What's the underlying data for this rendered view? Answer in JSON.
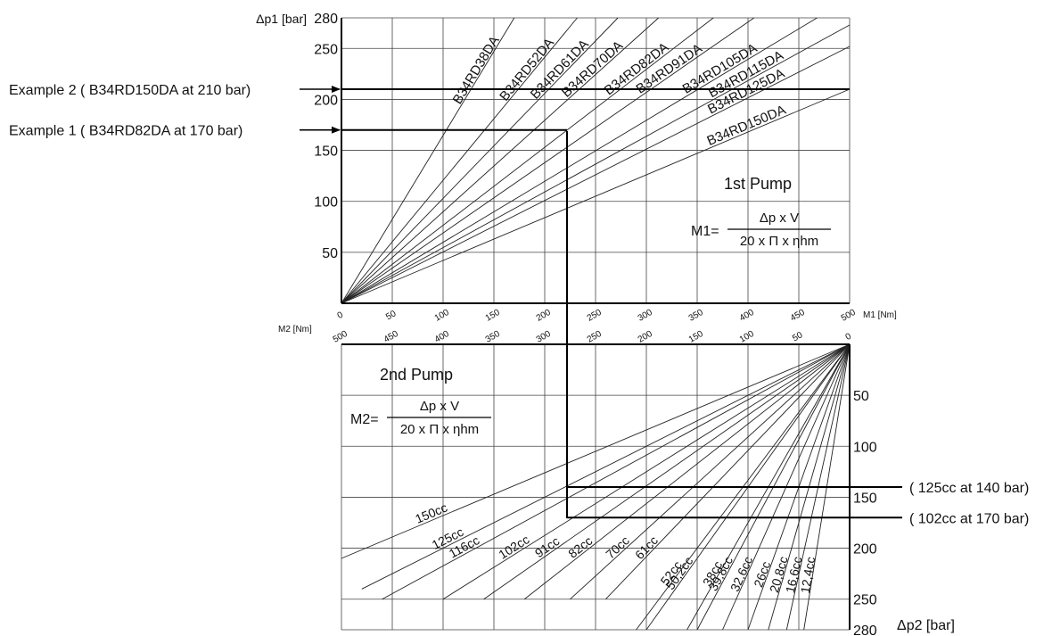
{
  "chart_data": [
    {
      "type": "line",
      "panel": "1st Pump",
      "title": "1st Pump",
      "formula": {
        "lhs": "M1=",
        "numerator": "Δp x V",
        "denominator": "20 x Π x ηhm"
      },
      "xlabel": "M1 [Nm]",
      "ylabel": "Δp1 [bar]",
      "xlim": [
        0,
        500
      ],
      "ylim": [
        0,
        280
      ],
      "xticks": [
        0,
        50,
        100,
        150,
        200,
        250,
        300,
        350,
        400,
        450,
        500
      ],
      "yticks": [
        50,
        100,
        150,
        200,
        250,
        280
      ],
      "grid": true,
      "series": [
        {
          "name": "B34RD38DA",
          "x": [
            0,
            170
          ],
          "y": [
            0,
            280
          ]
        },
        {
          "name": "B34RD52DA",
          "x": [
            0,
            232
          ],
          "y": [
            0,
            280
          ]
        },
        {
          "name": "B34RD61DA",
          "x": [
            0,
            272
          ],
          "y": [
            0,
            280
          ]
        },
        {
          "name": "B34RD70DA",
          "x": [
            0,
            312
          ],
          "y": [
            0,
            280
          ]
        },
        {
          "name": "B34RD82DA",
          "x": [
            0,
            366
          ],
          "y": [
            0,
            280
          ]
        },
        {
          "name": "B34RD91DA",
          "x": [
            0,
            406
          ],
          "y": [
            0,
            280
          ]
        },
        {
          "name": "B34RD105DA",
          "x": [
            0,
            468
          ],
          "y": [
            0,
            280
          ]
        },
        {
          "name": "B34RD115DA",
          "x": [
            0,
            500
          ],
          "y": [
            0,
            273
          ]
        },
        {
          "name": "B34RD125DA",
          "x": [
            0,
            500
          ],
          "y": [
            0,
            252
          ]
        },
        {
          "name": "B34RD150DA",
          "x": [
            0,
            500
          ],
          "y": [
            0,
            210
          ]
        }
      ],
      "annotations": [
        {
          "text": "Example 2 ( B34RD150DA at 210 bar)",
          "y": 210,
          "x_end": 500
        },
        {
          "text": "Example 1 ( B34RD82DA at 170 bar)",
          "y": 170,
          "x_end": 222
        }
      ]
    },
    {
      "type": "line",
      "panel": "2nd Pump",
      "title": "2nd Pump",
      "formula": {
        "lhs": "M2=",
        "numerator": "Δp x V",
        "denominator": "20 x Π x ηhm"
      },
      "xlabel": "M2 [Nm]",
      "ylabel": "Δp2 [bar]",
      "xlim": [
        500,
        0
      ],
      "ylim": [
        0,
        280
      ],
      "xticks": [
        500,
        450,
        400,
        350,
        300,
        250,
        200,
        150,
        100,
        50,
        0
      ],
      "yticks": [
        50,
        100,
        150,
        200,
        250,
        280
      ],
      "grid": true,
      "series": [
        {
          "name": "150cc",
          "x": [
            0,
            500
          ],
          "y": [
            0,
            210
          ]
        },
        {
          "name": "125cc",
          "x": [
            0,
            480
          ],
          "y": [
            0,
            240
          ]
        },
        {
          "name": "116cc",
          "x": [
            0,
            460
          ],
          "y": [
            0,
            250
          ]
        },
        {
          "name": "102cc",
          "x": [
            0,
            400
          ],
          "y": [
            0,
            250
          ]
        },
        {
          "name": "91cc",
          "x": [
            0,
            360
          ],
          "y": [
            0,
            250
          ]
        },
        {
          "name": "82cc",
          "x": [
            0,
            320
          ],
          "y": [
            0,
            250
          ]
        },
        {
          "name": "70cc",
          "x": [
            0,
            275
          ],
          "y": [
            0,
            250
          ]
        },
        {
          "name": "61cc",
          "x": [
            0,
            240
          ],
          "y": [
            0,
            250
          ]
        },
        {
          "name": "52cc",
          "x": [
            0,
            210
          ],
          "y": [
            0,
            280
          ]
        },
        {
          "name": "38cc",
          "x": [
            0,
            160
          ],
          "y": [
            0,
            280
          ]
        },
        {
          "name": "50,2cc",
          "x": [
            0,
            200
          ],
          "y": [
            0,
            280
          ]
        },
        {
          "name": "39,8cc",
          "x": [
            0,
            150
          ],
          "y": [
            0,
            280
          ]
        },
        {
          "name": "32,6cc",
          "x": [
            0,
            125
          ],
          "y": [
            0,
            280
          ]
        },
        {
          "name": "26cc",
          "x": [
            0,
            100
          ],
          "y": [
            0,
            280
          ]
        },
        {
          "name": "20,8cc",
          "x": [
            0,
            80
          ],
          "y": [
            0,
            280
          ]
        },
        {
          "name": "16,6cc",
          "x": [
            0,
            62
          ],
          "y": [
            0,
            280
          ]
        },
        {
          "name": "12,4cc",
          "x": [
            0,
            45
          ],
          "y": [
            0,
            280
          ]
        }
      ],
      "annotations": [
        {
          "text": "( 125cc at 140 bar)",
          "y": 140,
          "x_start": 278
        },
        {
          "text": "( 102cc at 170 bar)",
          "y": 170,
          "x_start": 278
        }
      ]
    }
  ]
}
